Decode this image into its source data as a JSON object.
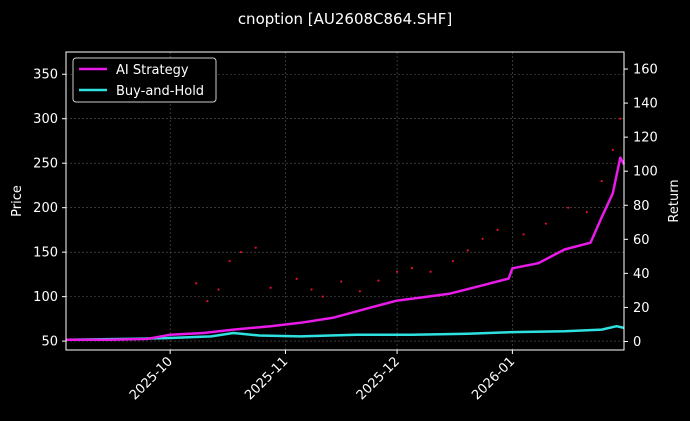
{
  "chart_data": {
    "type": "line",
    "title": "cnoption [AU2608C864.SHF]",
    "xlabel": "",
    "ylabel": "Price",
    "y2label": "Return",
    "x_range": [
      "2025-09-03",
      "2026-01-31"
    ],
    "x_ticks": [
      "2025-10",
      "2025-11",
      "2025-12",
      "2026-01"
    ],
    "ylim": [
      40,
      375
    ],
    "yticks": [
      50,
      100,
      150,
      200,
      250,
      300,
      350
    ],
    "y2lim": [
      -5,
      170
    ],
    "y2ticks": [
      0,
      20,
      40,
      60,
      80,
      100,
      120,
      140,
      160
    ],
    "grid": true,
    "legend_position": "top-left",
    "series": [
      {
        "name": "AI Strategy",
        "axis": "right",
        "color": "#e81be8",
        "points": [
          [
            "2025-09-03",
            1
          ],
          [
            "2025-09-15",
            1
          ],
          [
            "2025-09-25",
            1.5
          ],
          [
            "2025-10-01",
            4
          ],
          [
            "2025-10-10",
            5
          ],
          [
            "2025-10-18",
            7
          ],
          [
            "2025-10-28",
            9
          ],
          [
            "2025-11-05",
            11
          ],
          [
            "2025-11-14",
            14
          ],
          [
            "2025-11-24",
            20
          ],
          [
            "2025-12-01",
            24
          ],
          [
            "2025-12-08",
            26
          ],
          [
            "2025-12-15",
            28
          ],
          [
            "2025-12-24",
            33
          ],
          [
            "2025-12-31",
            37
          ],
          [
            "2026-01-01",
            43
          ],
          [
            "2026-01-08",
            46
          ],
          [
            "2026-01-15",
            54
          ],
          [
            "2026-01-22",
            58
          ],
          [
            "2026-01-25",
            73
          ],
          [
            "2026-01-28",
            87
          ],
          [
            "2026-01-30",
            108
          ],
          [
            "2026-01-31",
            104
          ]
        ]
      },
      {
        "name": "Buy-and-Hold",
        "axis": "right",
        "color": "#2fe0e0",
        "points": [
          [
            "2025-09-03",
            1
          ],
          [
            "2025-09-20",
            1.5
          ],
          [
            "2025-09-30",
            2
          ],
          [
            "2025-10-12",
            3
          ],
          [
            "2025-10-18",
            5
          ],
          [
            "2025-10-25",
            3.5
          ],
          [
            "2025-11-05",
            3
          ],
          [
            "2025-11-20",
            4
          ],
          [
            "2025-12-05",
            4
          ],
          [
            "2025-12-20",
            4.5
          ],
          [
            "2026-01-01",
            5.5
          ],
          [
            "2026-01-15",
            6
          ],
          [
            "2026-01-25",
            7
          ],
          [
            "2026-01-29",
            9
          ],
          [
            "2026-01-31",
            8
          ]
        ]
      },
      {
        "name": "Price",
        "axis": "left",
        "color": "#e01030",
        "style": "scatter",
        "points": [
          [
            "2025-10-08",
            115
          ],
          [
            "2025-10-11",
            95
          ],
          [
            "2025-10-14",
            108
          ],
          [
            "2025-10-17",
            140
          ],
          [
            "2025-10-20",
            150
          ],
          [
            "2025-10-24",
            155
          ],
          [
            "2025-10-28",
            110
          ],
          [
            "2025-11-04",
            120
          ],
          [
            "2025-11-08",
            108
          ],
          [
            "2025-11-11",
            100
          ],
          [
            "2025-11-16",
            117
          ],
          [
            "2025-11-21",
            106
          ],
          [
            "2025-11-26",
            118
          ],
          [
            "2025-12-01",
            128
          ],
          [
            "2025-12-05",
            132
          ],
          [
            "2025-12-10",
            128
          ],
          [
            "2025-12-16",
            140
          ],
          [
            "2025-12-20",
            152
          ],
          [
            "2025-12-24",
            165
          ],
          [
            "2025-12-28",
            175
          ],
          [
            "2026-01-04",
            170
          ],
          [
            "2026-01-10",
            182
          ],
          [
            "2026-01-16",
            200
          ],
          [
            "2026-01-21",
            195
          ],
          [
            "2026-01-25",
            230
          ],
          [
            "2026-01-28",
            265
          ],
          [
            "2026-01-30",
            300
          ]
        ]
      }
    ]
  }
}
